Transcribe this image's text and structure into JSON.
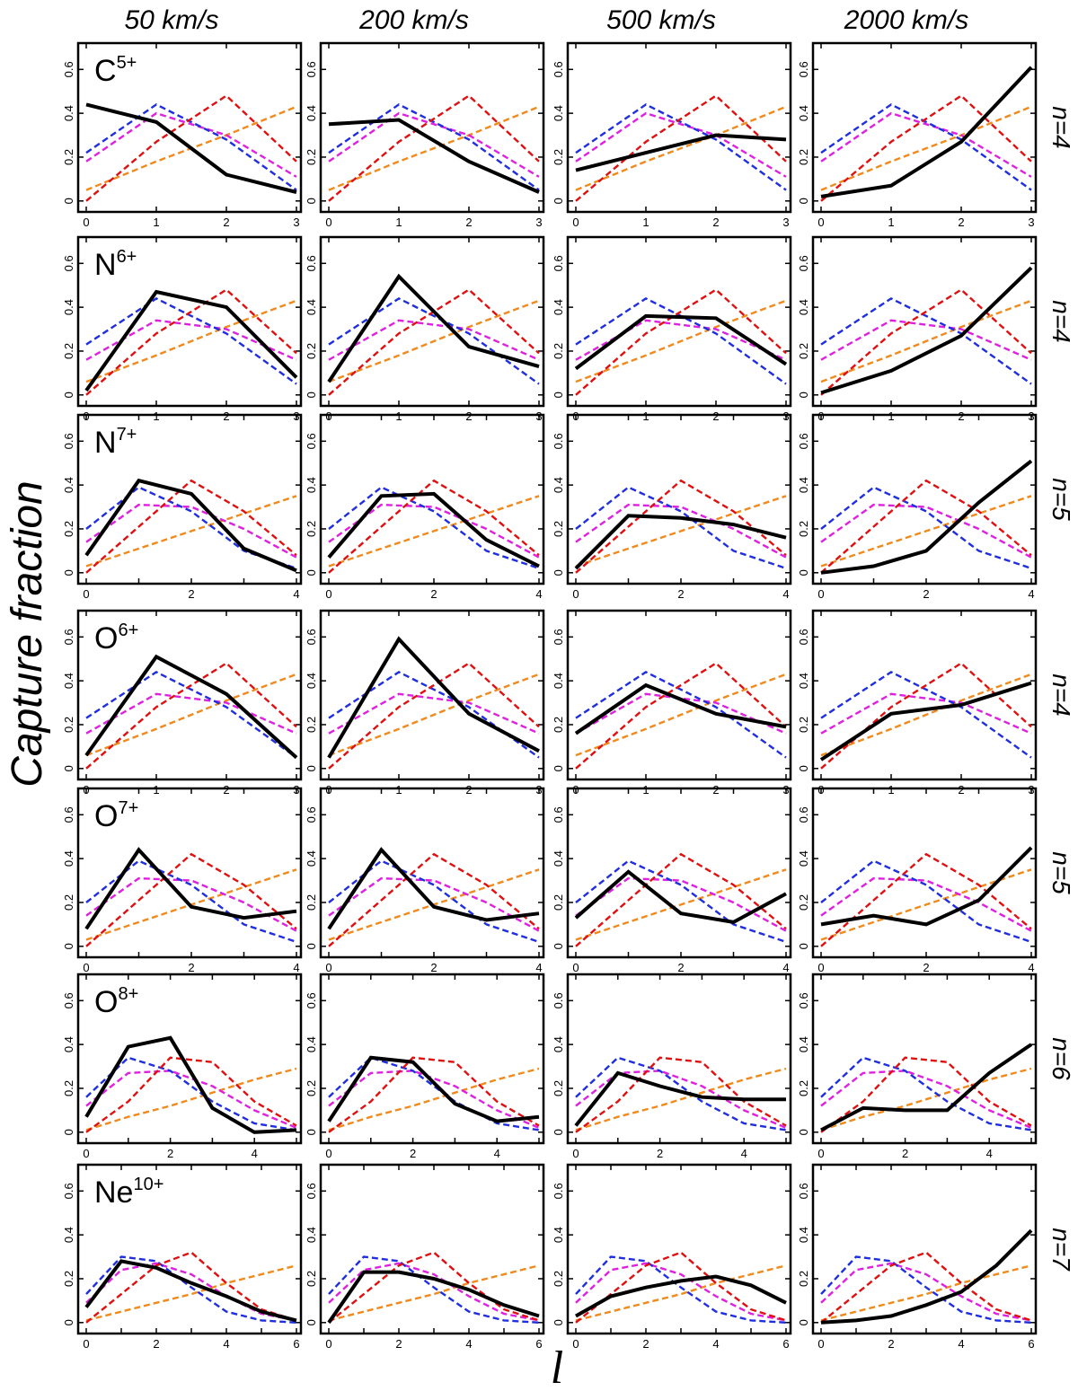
{
  "chart_data": {
    "type": "line",
    "ylabel": "Capture fraction",
    "xlabel": "l",
    "ylim": [
      -0.05,
      0.72
    ],
    "y_ticks": [
      "0",
      "0.2",
      "0.4",
      "0.6"
    ],
    "columns": [
      "50 km/s",
      "200 km/s",
      "500 km/s",
      "2000 km/s"
    ],
    "colors": {
      "black": "#000000",
      "blue": "#1f2fe0",
      "magenta": "#e020e0",
      "red": "#e01010",
      "orange": "#f08a1c"
    },
    "rows": [
      {
        "ion": "C",
        "charge": "5+",
        "n_label": "n=4",
        "x_ticks": [
          "0",
          "1",
          "2",
          "3"
        ],
        "ref": {
          "blue": [
            0.22,
            0.44,
            0.28,
            0.05
          ],
          "magenta": [
            0.18,
            0.4,
            0.3,
            0.11
          ],
          "red": [
            0.0,
            0.27,
            0.48,
            0.18
          ],
          "orange": [
            0.05,
            0.18,
            0.3,
            0.43
          ]
        },
        "black": [
          [
            0.44,
            0.36,
            0.12,
            0.04
          ],
          [
            0.35,
            0.37,
            0.18,
            0.04
          ],
          [
            0.14,
            0.22,
            0.3,
            0.28
          ],
          [
            0.02,
            0.07,
            0.27,
            0.61
          ]
        ]
      },
      {
        "ion": "N",
        "charge": "6+",
        "n_label": "n=4",
        "x_ticks": [
          "0",
          "1",
          "2",
          "3"
        ],
        "ref": {
          "blue": [
            0.23,
            0.44,
            0.28,
            0.05
          ],
          "magenta": [
            0.16,
            0.34,
            0.3,
            0.16
          ],
          "red": [
            0.0,
            0.28,
            0.48,
            0.19
          ],
          "orange": [
            0.06,
            0.18,
            0.31,
            0.43
          ]
        },
        "black": [
          [
            0.02,
            0.47,
            0.4,
            0.08
          ],
          [
            0.06,
            0.54,
            0.22,
            0.13
          ],
          [
            0.12,
            0.36,
            0.35,
            0.14
          ],
          [
            0.01,
            0.11,
            0.27,
            0.58
          ]
        ]
      },
      {
        "ion": "N",
        "charge": "7+",
        "n_label": "n=5",
        "x_ticks": [
          "0",
          "",
          "2",
          "",
          "4"
        ],
        "ref": {
          "blue": [
            0.2,
            0.39,
            0.28,
            0.1,
            0.02
          ],
          "magenta": [
            0.14,
            0.31,
            0.3,
            0.2,
            0.07
          ],
          "red": [
            0.0,
            0.21,
            0.42,
            0.28,
            0.08
          ],
          "orange": [
            0.03,
            0.11,
            0.19,
            0.27,
            0.35
          ]
        },
        "black": [
          [
            0.08,
            0.42,
            0.36,
            0.11,
            0.01
          ],
          [
            0.07,
            0.35,
            0.36,
            0.15,
            0.03
          ],
          [
            0.02,
            0.26,
            0.25,
            0.22,
            0.16
          ],
          [
            0.0,
            0.03,
            0.1,
            0.32,
            0.51
          ]
        ]
      },
      {
        "ion": "O",
        "charge": "6+",
        "n_label": "n=4",
        "x_ticks": [
          "0",
          "1",
          "2",
          "3"
        ],
        "ref": {
          "blue": [
            0.23,
            0.44,
            0.28,
            0.05
          ],
          "magenta": [
            0.16,
            0.34,
            0.3,
            0.16
          ],
          "red": [
            0.0,
            0.28,
            0.48,
            0.19
          ],
          "orange": [
            0.06,
            0.18,
            0.31,
            0.43
          ]
        },
        "black": [
          [
            0.06,
            0.51,
            0.34,
            0.05
          ],
          [
            0.05,
            0.59,
            0.25,
            0.08
          ],
          [
            0.16,
            0.38,
            0.25,
            0.19
          ],
          [
            0.04,
            0.25,
            0.29,
            0.39
          ]
        ]
      },
      {
        "ion": "O",
        "charge": "7+",
        "n_label": "n=5",
        "x_ticks": [
          "0",
          "",
          "2",
          "",
          "4"
        ],
        "ref": {
          "blue": [
            0.2,
            0.39,
            0.28,
            0.1,
            0.02
          ],
          "magenta": [
            0.14,
            0.31,
            0.3,
            0.2,
            0.07
          ],
          "red": [
            0.0,
            0.21,
            0.42,
            0.28,
            0.08
          ],
          "orange": [
            0.03,
            0.11,
            0.19,
            0.27,
            0.35
          ]
        },
        "black": [
          [
            0.08,
            0.44,
            0.18,
            0.13,
            0.16
          ],
          [
            0.08,
            0.44,
            0.18,
            0.12,
            0.15
          ],
          [
            0.13,
            0.34,
            0.15,
            0.11,
            0.24
          ],
          [
            0.1,
            0.14,
            0.1,
            0.21,
            0.45
          ]
        ]
      },
      {
        "ion": "O",
        "charge": "8+",
        "n_label": "n=6",
        "x_ticks": [
          "0",
          "",
          "2",
          "",
          "4",
          ""
        ],
        "ref": {
          "blue": [
            0.16,
            0.34,
            0.28,
            0.14,
            0.04,
            0.01
          ],
          "magenta": [
            0.12,
            0.27,
            0.28,
            0.21,
            0.1,
            0.02
          ],
          "red": [
            0.0,
            0.14,
            0.34,
            0.32,
            0.14,
            0.03
          ],
          "orange": [
            0.01,
            0.07,
            0.12,
            0.18,
            0.24,
            0.29
          ]
        },
        "black": [
          [
            0.07,
            0.39,
            0.43,
            0.11,
            0.0,
            0.01
          ],
          [
            0.05,
            0.34,
            0.32,
            0.13,
            0.05,
            0.07
          ],
          [
            0.03,
            0.27,
            0.21,
            0.16,
            0.15,
            0.15
          ],
          [
            0.01,
            0.11,
            0.1,
            0.1,
            0.27,
            0.4
          ]
        ]
      },
      {
        "ion": "Ne",
        "charge": "10+",
        "n_label": "n=7",
        "x_ticks": [
          "0",
          "",
          "2",
          "",
          "4",
          "",
          "6"
        ],
        "ref": {
          "blue": [
            0.13,
            0.3,
            0.28,
            0.16,
            0.05,
            0.01,
            0.0
          ],
          "magenta": [
            0.09,
            0.24,
            0.27,
            0.22,
            0.12,
            0.04,
            0.01
          ],
          "red": [
            0.0,
            0.13,
            0.26,
            0.32,
            0.18,
            0.06,
            0.01
          ],
          "orange": [
            0.01,
            0.05,
            0.09,
            0.13,
            0.18,
            0.22,
            0.26
          ]
        },
        "black": [
          [
            0.07,
            0.28,
            0.25,
            0.18,
            0.12,
            0.05,
            0.01
          ],
          [
            0.0,
            0.23,
            0.23,
            0.2,
            0.15,
            0.08,
            0.03
          ],
          [
            0.03,
            0.12,
            0.16,
            0.19,
            0.21,
            0.17,
            0.09
          ],
          [
            0.0,
            0.01,
            0.03,
            0.08,
            0.14,
            0.26,
            0.42
          ]
        ]
      }
    ]
  }
}
